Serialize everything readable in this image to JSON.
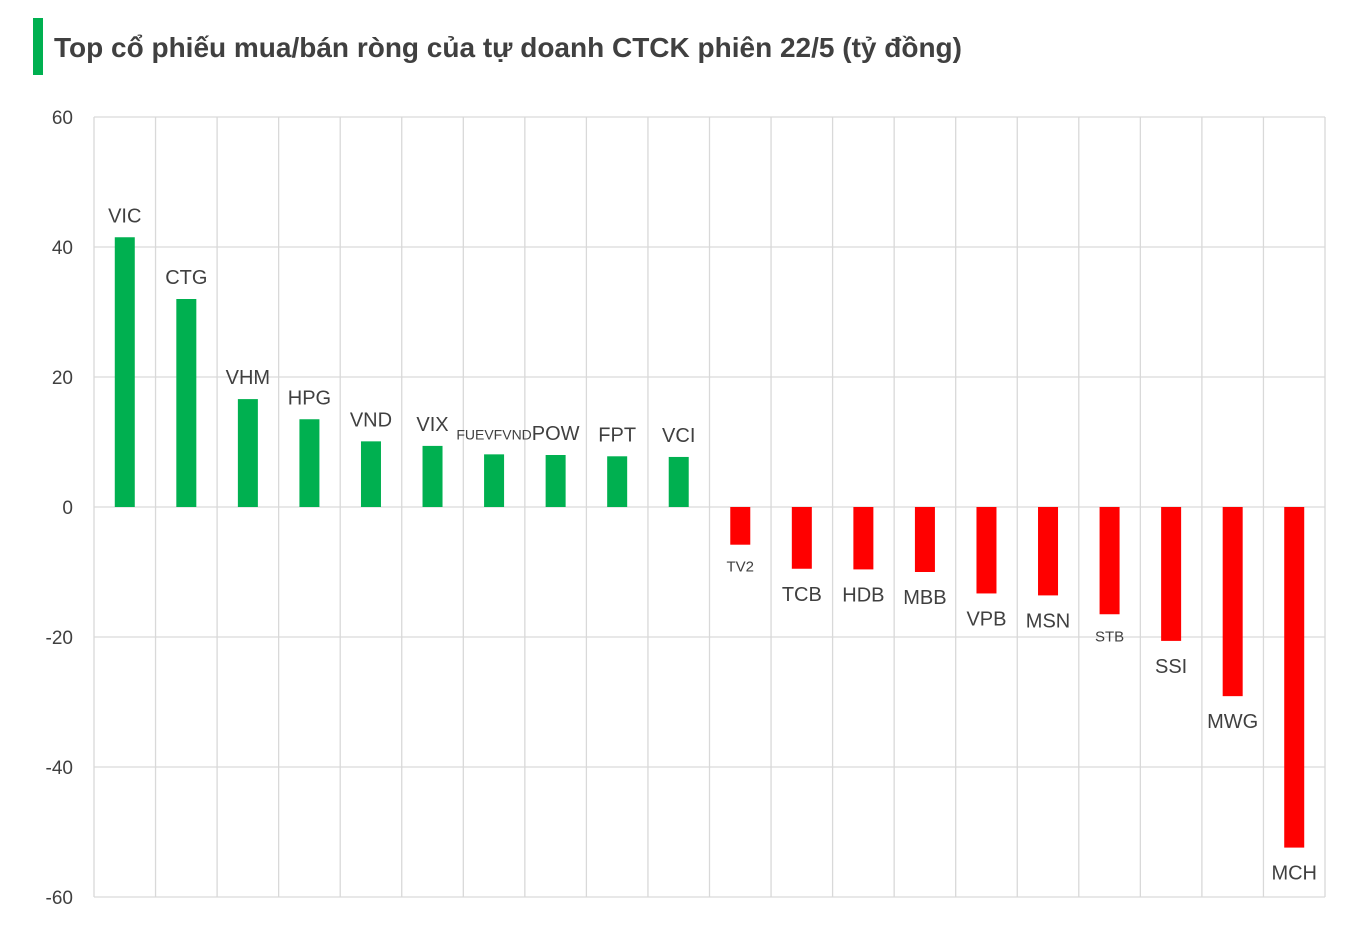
{
  "colors": {
    "positive": "#00b050",
    "negative": "#ff0000",
    "grid": "#d9d9d9",
    "text": "#404040",
    "title_accent": "#00b050"
  },
  "chart_data": {
    "type": "bar",
    "title": "Top cổ phiếu mua/bán ròng của tự doanh CTCK phiên 22/5 (tỷ đồng)",
    "xlabel": "",
    "ylabel": "",
    "ylim": [
      -60,
      60
    ],
    "yticks": [
      "60",
      "40",
      "20",
      "0",
      "-20",
      "-40",
      "-60"
    ],
    "grid": true,
    "categories": [
      "VIC",
      "CTG",
      "VHM",
      "HPG",
      "VND",
      "VIX",
      "FUEVFVND",
      "POW",
      "FPT",
      "VCI",
      "TV2",
      "TCB",
      "HDB",
      "MBB",
      "VPB",
      "MSN",
      "STB",
      "SSI",
      "MWG",
      "MCH"
    ],
    "values": [
      41.5,
      32.0,
      16.6,
      13.5,
      10.1,
      9.4,
      8.1,
      8.0,
      7.8,
      7.7,
      -5.8,
      -9.5,
      -9.6,
      -10.0,
      -13.3,
      -13.6,
      -16.5,
      -20.6,
      -29.1,
      -52.4
    ]
  }
}
